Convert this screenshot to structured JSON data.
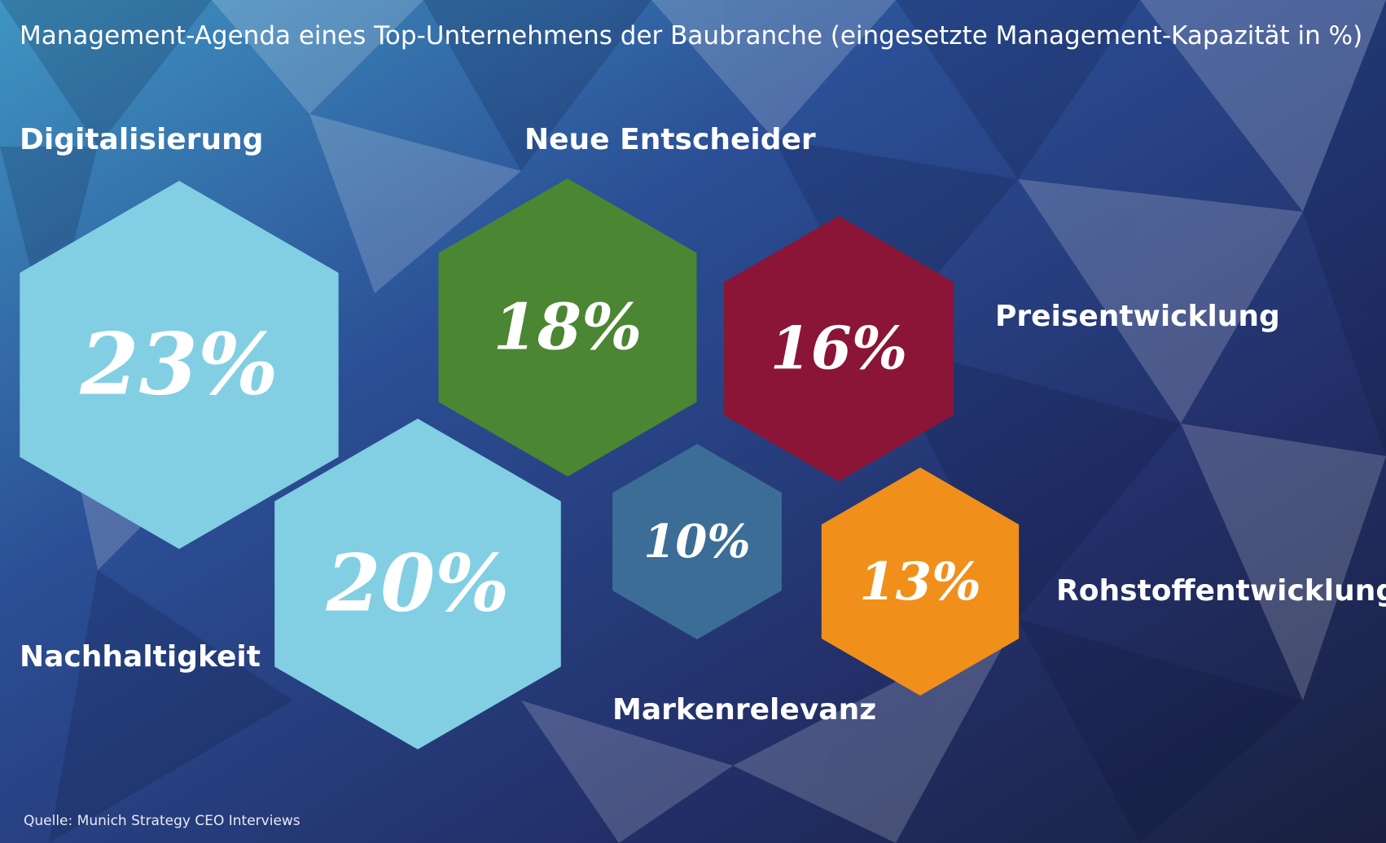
{
  "chart_data": {
    "type": "bubble",
    "title": "Management-Agenda eines Top-Unternehmens der Baubranche (eingesetzte Management-Kapazität in %)",
    "source": "Quelle: Munich Strategy CEO Interviews",
    "unit": "%",
    "series": [
      {
        "name": "Digitalisierung",
        "value": 23,
        "label": "23%",
        "color": "#82cfe3"
      },
      {
        "name": "Neue Entscheider",
        "value": 18,
        "label": "18%",
        "color": "#4b8633"
      },
      {
        "name": "Preisentwicklung",
        "value": 16,
        "label": "16%",
        "color": "#8b1537"
      },
      {
        "name": "Nachhaltigkeit",
        "value": 20,
        "label": "20%",
        "color": "#82cfe3"
      },
      {
        "name": "Markenrelevanz",
        "value": 10,
        "label": "10%",
        "color": "#3c6d96"
      },
      {
        "name": "Rohstoffentwicklung",
        "value": 13,
        "label": "13%",
        "color": "#f18f1b"
      }
    ]
  },
  "colors": {
    "background_light": "#3d8fc0",
    "background_mid": "#2a3f8a",
    "background_dark": "#1c2550",
    "text": "#ffffff"
  }
}
